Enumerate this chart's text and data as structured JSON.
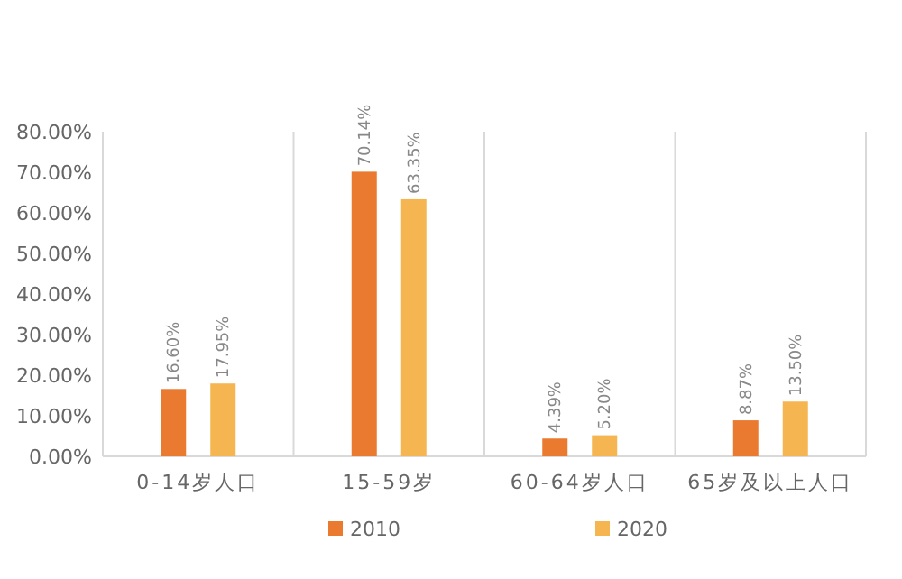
{
  "chart_data": {
    "type": "bar",
    "categories": [
      "0-14岁人口",
      "15-59岁",
      "60-64岁人口",
      "65岁及以上人口"
    ],
    "series": [
      {
        "name": "2010",
        "color": "#e97a30",
        "values": [
          16.6,
          70.14,
          4.39,
          8.87
        ],
        "value_labels": [
          "16.60%",
          "70.14%",
          "4.39%",
          "8.87%"
        ]
      },
      {
        "name": "2020",
        "color": "#f5b550",
        "values": [
          17.95,
          63.35,
          5.2,
          13.5
        ],
        "value_labels": [
          "17.95%",
          "63.35%",
          "5.20%",
          "13.50%"
        ]
      }
    ],
    "ylim": [
      0,
      80
    ],
    "yticks": [
      {
        "value": 0,
        "label": "0.00%"
      },
      {
        "value": 10,
        "label": "10.00%"
      },
      {
        "value": 20,
        "label": "20.00%"
      },
      {
        "value": 30,
        "label": "30.00%"
      },
      {
        "value": 40,
        "label": "40.00%"
      },
      {
        "value": 50,
        "label": "50.00%"
      },
      {
        "value": 60,
        "label": "60.00%"
      },
      {
        "value": 70,
        "label": "70.00%"
      },
      {
        "value": 80,
        "label": "80.00%"
      }
    ],
    "legend": "bottom",
    "grid": false
  }
}
